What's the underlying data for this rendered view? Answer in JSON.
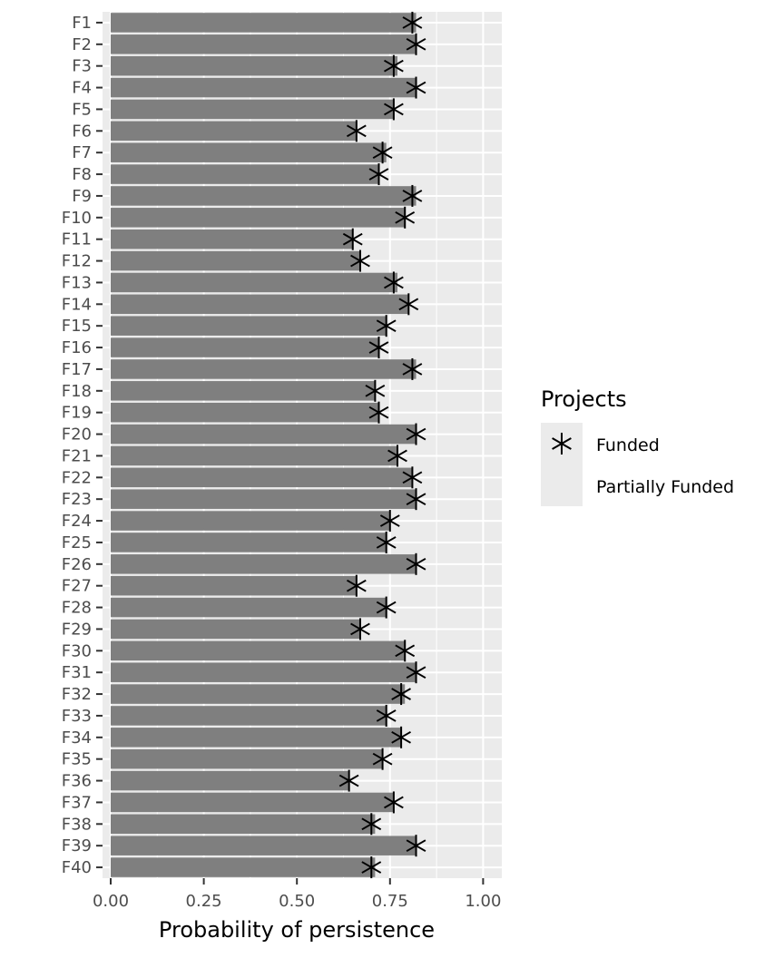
{
  "chart_data": {
    "type": "bar",
    "xlabel": "Probability of persistence",
    "ylabel": "",
    "xlim": [
      0,
      1.05
    ],
    "x_ticks": [
      "0.00",
      "0.25",
      "0.50",
      "0.75",
      "1.00"
    ],
    "x_tick_values": [
      0,
      0.25,
      0.5,
      0.75,
      1.0
    ],
    "grid": true,
    "categories": [
      "F1",
      "F2",
      "F3",
      "F4",
      "F5",
      "F6",
      "F7",
      "F8",
      "F9",
      "F10",
      "F11",
      "F12",
      "F13",
      "F14",
      "F15",
      "F16",
      "F17",
      "F18",
      "F19",
      "F20",
      "F21",
      "F22",
      "F23",
      "F24",
      "F25",
      "F26",
      "F27",
      "F28",
      "F29",
      "F30",
      "F31",
      "F32",
      "F33",
      "F34",
      "F35",
      "F36",
      "F37",
      "F38",
      "F39",
      "F40"
    ],
    "series": [
      {
        "name": "Partially Funded",
        "mark": "bar",
        "color": "#7f7f7f",
        "values": [
          0.82,
          0.82,
          0.77,
          0.82,
          0.76,
          0.66,
          0.74,
          0.72,
          0.82,
          0.79,
          0.65,
          0.67,
          0.77,
          0.8,
          0.74,
          0.72,
          0.82,
          0.71,
          0.72,
          0.82,
          0.77,
          0.81,
          0.82,
          0.75,
          0.74,
          0.82,
          0.66,
          0.74,
          0.67,
          0.79,
          0.82,
          0.79,
          0.74,
          0.78,
          0.73,
          0.64,
          0.76,
          0.71,
          0.82,
          0.71
        ]
      },
      {
        "name": "Funded",
        "mark": "asterisk",
        "color": "#000000",
        "values": [
          0.81,
          0.82,
          0.76,
          0.82,
          0.76,
          0.66,
          0.73,
          0.72,
          0.81,
          0.79,
          0.65,
          0.67,
          0.76,
          0.8,
          0.74,
          0.72,
          0.81,
          0.71,
          0.72,
          0.82,
          0.77,
          0.81,
          0.82,
          0.75,
          0.74,
          0.82,
          0.66,
          0.74,
          0.67,
          0.79,
          0.82,
          0.78,
          0.74,
          0.78,
          0.73,
          0.64,
          0.76,
          0.7,
          0.82,
          0.7
        ]
      }
    ],
    "legend": {
      "title": "Projects",
      "position": "right",
      "entries": [
        "Funded",
        "Partially Funded"
      ]
    },
    "colors": {
      "panel_background": "#ebebeb",
      "grid": "#ffffff",
      "bar": "#7f7f7f",
      "point": "#000000",
      "tick_text": "#4d4d4d"
    }
  }
}
